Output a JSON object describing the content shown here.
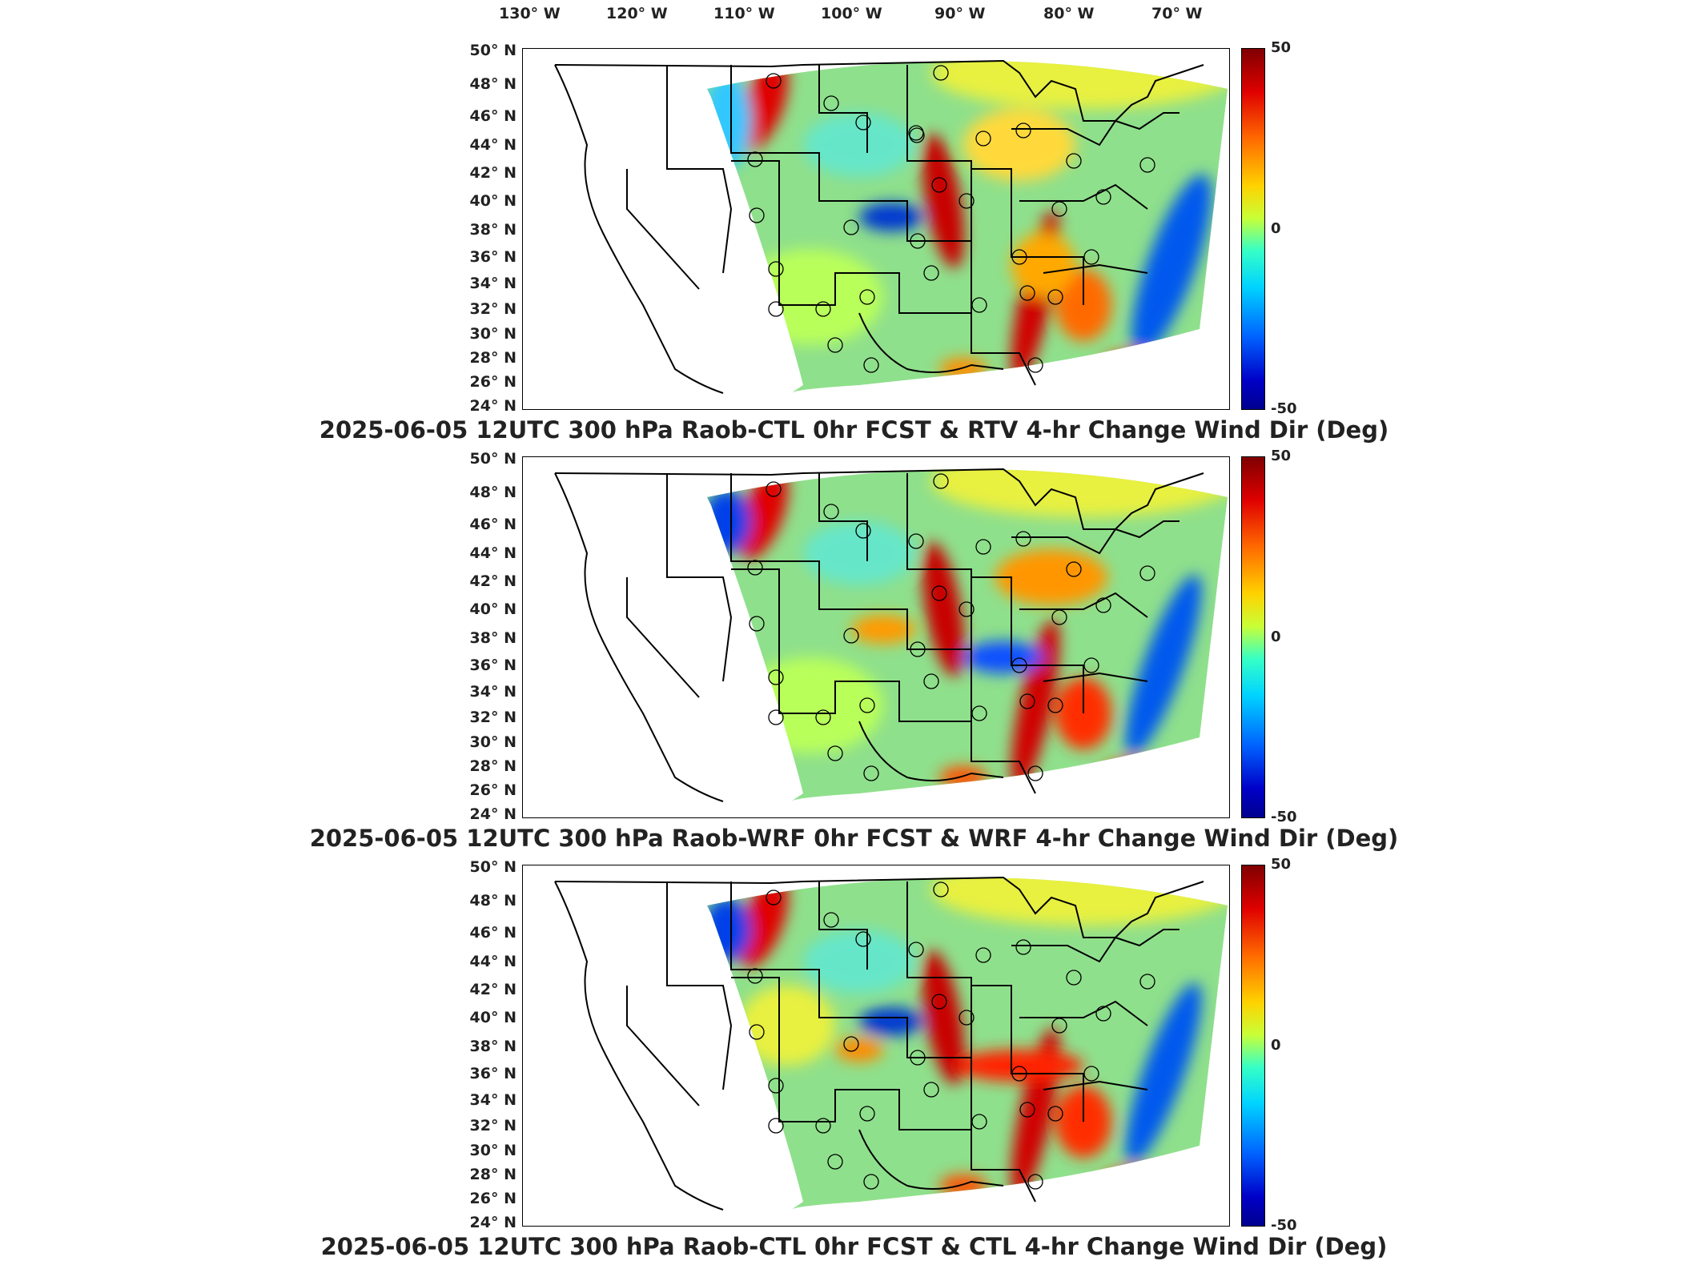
{
  "lon_labels": [
    "130° W",
    "120° W",
    "110° W",
    "100° W",
    "90° W",
    "80° W",
    "70° W"
  ],
  "lat_labels": [
    "50° N",
    "48° N",
    "46° N",
    "44° N",
    "42° N",
    "40° N",
    "38° N",
    "36° N",
    "34° N",
    "32° N",
    "30° N",
    "28° N",
    "26° N",
    "24° N"
  ],
  "colorbar": {
    "max": "50",
    "mid": "0",
    "min": "-50"
  },
  "panels": [
    {
      "title": "2025-06-05 12UTC 300 hPa Raob-CTL 0hr FCST & RTV 4-hr Change Wind Dir (Deg)"
    },
    {
      "title": "2025-06-05 12UTC 300 hPa Raob-WRF 0hr FCST & WRF 4-hr Change Wind Dir (Deg)"
    },
    {
      "title": "2025-06-05 12UTC 300 hPa Raob-CTL 0hr FCST & CTL 4-hr Change Wind Dir (Deg)"
    }
  ],
  "colors": {
    "frame": "#000000",
    "field_base": "#7dd88a",
    "positive": "#d40000",
    "negative": "#0050ff"
  }
}
